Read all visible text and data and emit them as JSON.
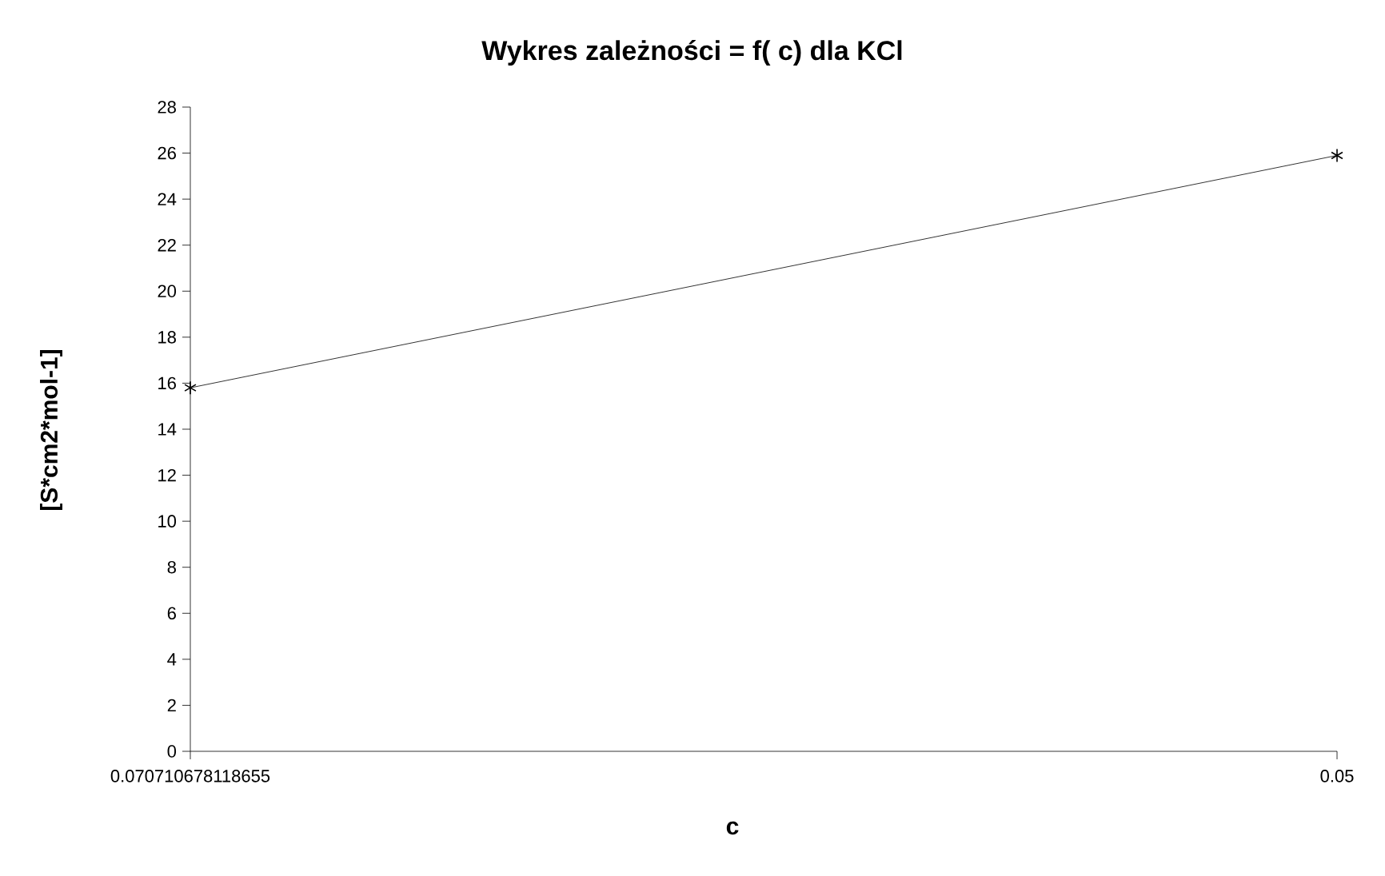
{
  "chart_data": {
    "type": "line",
    "title": "Wykres zależności   = f( c) dla KCl",
    "xlabel": "c",
    "ylabel": "[S*cm2*mol-1]",
    "categories": [
      "0.070710678118655",
      "0.05"
    ],
    "values": [
      15.8,
      25.9
    ],
    "color": "#000000",
    "marker": "cross",
    "line_style": "solid",
    "ylim": [
      0,
      28
    ],
    "yticks": [
      0,
      2,
      4,
      6,
      8,
      10,
      12,
      14,
      16,
      18,
      20,
      22,
      24,
      26,
      28
    ]
  }
}
